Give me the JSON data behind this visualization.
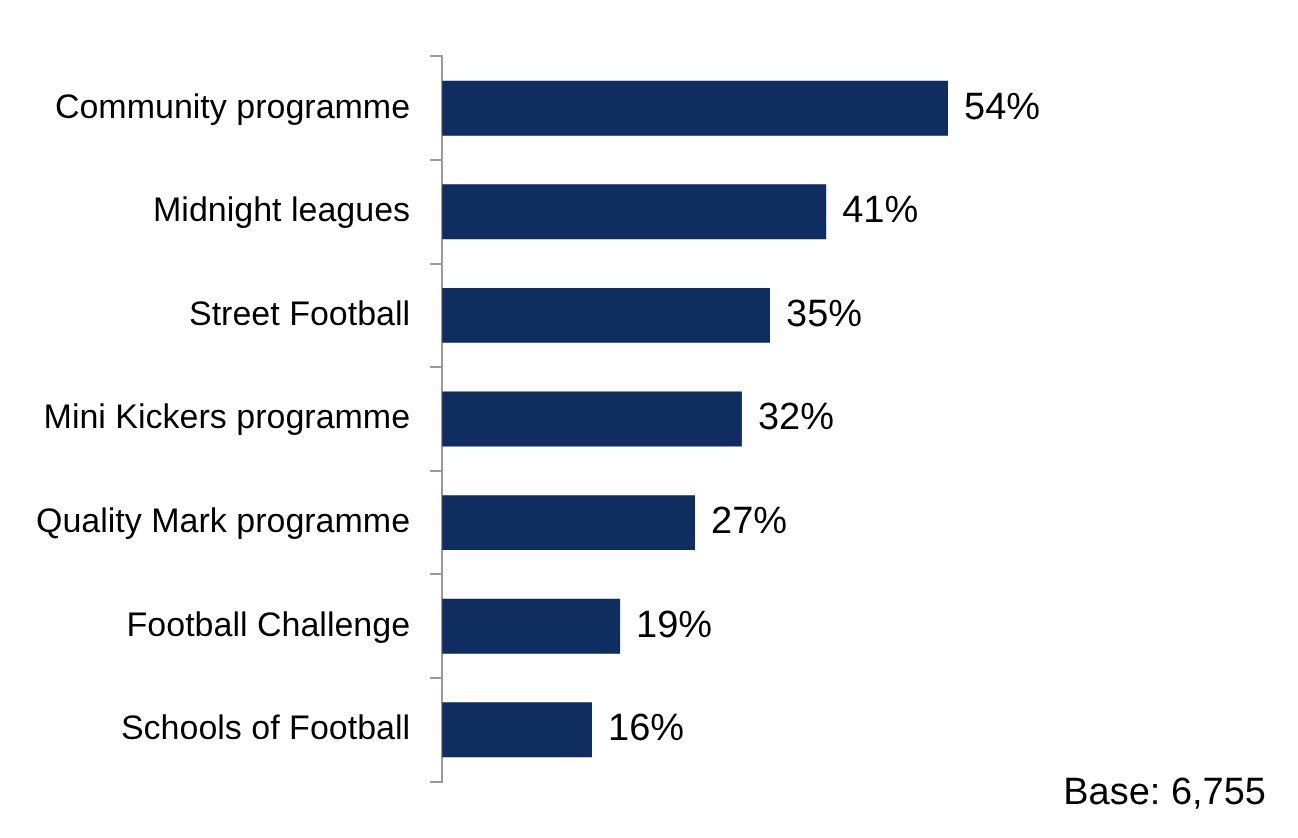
{
  "chart_data": {
    "type": "bar",
    "orientation": "horizontal",
    "categories": [
      "Community programme",
      "Midnight leagues",
      "Street Football",
      "Mini Kickers programme",
      "Quality Mark programme",
      "Football Challenge",
      "Schools of Football"
    ],
    "values": [
      54,
      41,
      35,
      32,
      27,
      19,
      16
    ],
    "value_labels": [
      "54%",
      "41%",
      "35%",
      "32%",
      "27%",
      "19%",
      "16%"
    ],
    "color": "#0f2d5e",
    "grid": false,
    "legend": false,
    "tick_labels": "y",
    "annotations": [
      "Base: 6,755"
    ]
  }
}
